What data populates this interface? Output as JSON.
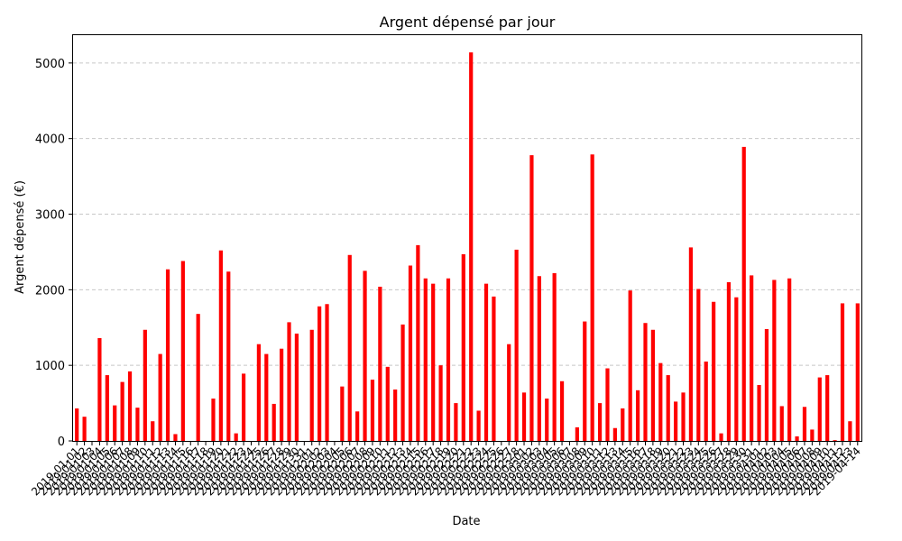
{
  "chart_data": {
    "type": "bar",
    "title": "Argent dépensé par jour",
    "xlabel": "Date",
    "ylabel": "Argent dépensé (€)",
    "ylim": [
      0,
      5380
    ],
    "yticks": [
      0,
      1000,
      2000,
      3000,
      4000,
      5000
    ],
    "grid": "y-dashed",
    "bar_color": "#ff0000",
    "categories": [
      "2019-01-01",
      "2019-01-02",
      "2019-01-03",
      "2019-01-04",
      "2019-01-05",
      "2019-01-06",
      "2019-01-07",
      "2019-01-08",
      "2019-01-09",
      "2019-01-10",
      "2019-01-11",
      "2019-01-12",
      "2019-01-13",
      "2019-01-14",
      "2019-01-15",
      "2019-01-16",
      "2019-01-17",
      "2019-01-18",
      "2019-01-19",
      "2019-01-20",
      "2019-01-21",
      "2019-01-22",
      "2019-01-23",
      "2019-01-24",
      "2019-01-25",
      "2019-01-26",
      "2019-01-27",
      "2019-01-28",
      "2019-01-29",
      "2019-01-30",
      "2019-01-31",
      "2019-02-01",
      "2019-02-02",
      "2019-02-03",
      "2019-02-04",
      "2019-02-05",
      "2019-02-06",
      "2019-02-07",
      "2019-02-08",
      "2019-02-09",
      "2019-02-10",
      "2019-02-11",
      "2019-02-12",
      "2019-02-13",
      "2019-02-14",
      "2019-02-15",
      "2019-02-16",
      "2019-02-17",
      "2019-02-18",
      "2019-02-19",
      "2019-02-20",
      "2019-02-21",
      "2019-02-22",
      "2019-02-23",
      "2019-02-24",
      "2019-02-25",
      "2019-02-26",
      "2019-02-27",
      "2019-02-28",
      "2019-03-01",
      "2019-03-02",
      "2019-03-03",
      "2019-03-04",
      "2019-03-05",
      "2019-03-06",
      "2019-03-07",
      "2019-03-08",
      "2019-03-09",
      "2019-03-10",
      "2019-03-11",
      "2019-03-12",
      "2019-03-13",
      "2019-03-14",
      "2019-03-15",
      "2019-03-16",
      "2019-03-17",
      "2019-03-18",
      "2019-03-19",
      "2019-03-20",
      "2019-03-21",
      "2019-03-22",
      "2019-03-23",
      "2019-03-24",
      "2019-03-25",
      "2019-03-26",
      "2019-03-27",
      "2019-03-28",
      "2019-03-29",
      "2019-03-30",
      "2019-03-31",
      "2019-04-01",
      "2019-04-02",
      "2019-04-03",
      "2019-04-04",
      "2019-04-05",
      "2019-04-06",
      "2019-04-07",
      "2019-04-08",
      "2019-04-09",
      "2019-04-10",
      "2019-04-11",
      "2019-04-12",
      "2019-04-13",
      "2019-04-14"
    ],
    "values": [
      430,
      320,
      0,
      1360,
      870,
      470,
      780,
      920,
      440,
      1470,
      260,
      1150,
      2270,
      90,
      2380,
      0,
      1680,
      0,
      560,
      2520,
      2240,
      100,
      890,
      0,
      1280,
      1150,
      490,
      1220,
      1570,
      1420,
      0,
      1470,
      1780,
      1810,
      0,
      720,
      2460,
      390,
      2250,
      810,
      2040,
      980,
      680,
      1540,
      2320,
      2590,
      2150,
      2080,
      1000,
      2150,
      500,
      2470,
      5140,
      400,
      2080,
      1910,
      0,
      1280,
      2530,
      640,
      3780,
      2180,
      560,
      2220,
      790,
      0,
      180,
      1580,
      3790,
      500,
      960,
      170,
      430,
      1990,
      670,
      1560,
      1470,
      1030,
      870,
      520,
      640,
      2560,
      2010,
      1050,
      1840,
      100,
      2100,
      1900,
      3890,
      2190,
      740,
      1480,
      2130,
      460,
      2150,
      60,
      450,
      150,
      840,
      870,
      10,
      1820,
      260,
      1820
    ]
  }
}
